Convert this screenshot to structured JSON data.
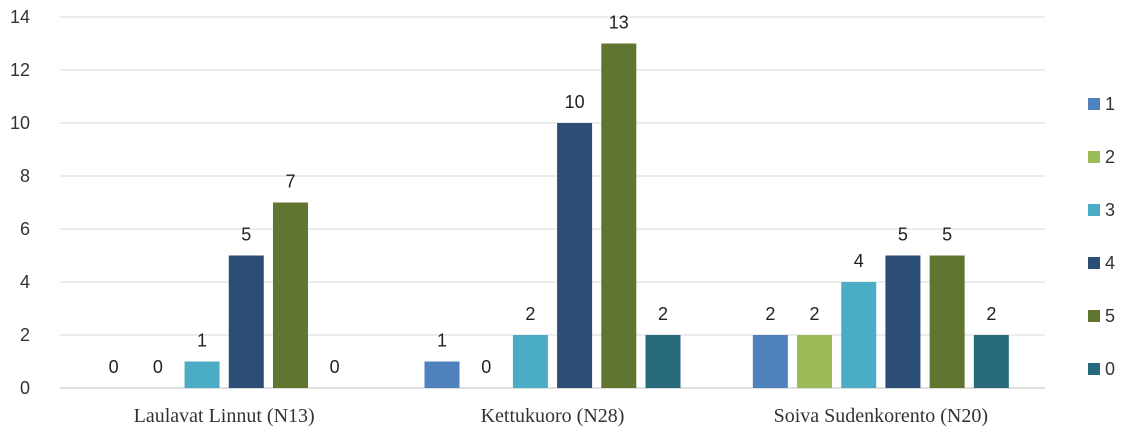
{
  "chart_data": {
    "type": "bar",
    "categories": [
      "Laulavat Linnut (N13)",
      "Kettukuoro (N28)",
      "Soiva Sudenkorento (N20)"
    ],
    "series": [
      {
        "name": "1",
        "color": "#4F81BD",
        "values": [
          0,
          1,
          2
        ]
      },
      {
        "name": "2",
        "color": "#9BBB59",
        "values": [
          0,
          0,
          2
        ]
      },
      {
        "name": "3",
        "color": "#4BACC6",
        "values": [
          1,
          2,
          4
        ]
      },
      {
        "name": "4",
        "color": "#2C4D75",
        "values": [
          5,
          10,
          5
        ]
      },
      {
        "name": "5",
        "color": "#5F7530",
        "values": [
          7,
          13,
          5
        ]
      },
      {
        "name": "0",
        "color": "#276A7C",
        "values": [
          0,
          2,
          2
        ]
      }
    ],
    "ylim": [
      0,
      14
    ],
    "yticks": [
      0,
      2,
      4,
      6,
      8,
      10,
      12,
      14
    ],
    "grid": true,
    "legend": "right",
    "title": "",
    "xlabel": "",
    "ylabel": ""
  }
}
